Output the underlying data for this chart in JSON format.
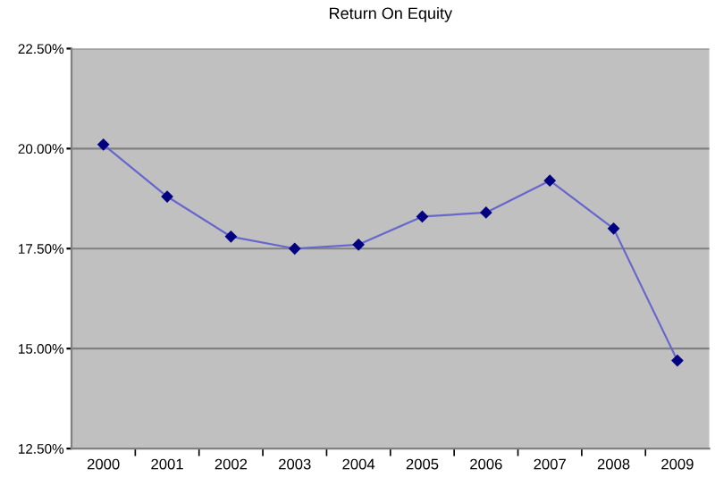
{
  "chart_data": {
    "type": "line",
    "title": "Return On Equity",
    "categories": [
      "2000",
      "2001",
      "2002",
      "2003",
      "2004",
      "2005",
      "2006",
      "2007",
      "2008",
      "2009"
    ],
    "series": [
      {
        "color": "#6666cc",
        "values": [
          20.1,
          18.8,
          17.8,
          17.5,
          17.6,
          18.3,
          18.4,
          19.2,
          18.0,
          14.7
        ]
      }
    ],
    "ylim": [
      12.5,
      22.5
    ],
    "yticks": [
      {
        "value": 12.5,
        "label": "12.50%"
      },
      {
        "value": 15,
        "label": "15.00%"
      },
      {
        "value": 17.5,
        "label": "17.50%"
      },
      {
        "value": 20,
        "label": "20.00%"
      },
      {
        "value": 22.5,
        "label": "22.50%"
      }
    ],
    "grid": "y",
    "marker": "diamond",
    "line_style": "solid"
  }
}
